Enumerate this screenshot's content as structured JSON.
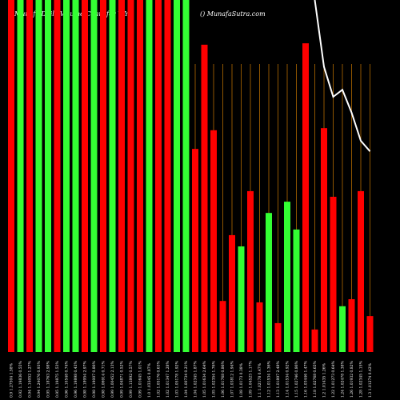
{
  "chart_data": {
    "type": "bar",
    "title": "Munafa Daily Volume Chart for WYO",
    "subtitle": "() MunafaSutra.com",
    "categories": [
      "0.9 1.27504 1.58%",
      "0.92 1.19836 0.55%",
      "0.94 1.14052 1.27%",
      "0.94 1.24076 0.93%",
      "0.95 1.18763 2.98%",
      "0.95 1.19875 1.53%",
      "0.96 1.10548 0.74%",
      "0.96 1.19898 0.43%",
      "0.98 1.18954 2.97%",
      "0.98 1.19007 0.86%",
      "0.98 1.06914 0.71%",
      "0.99 1.00452 2.13%",
      "0.99 1.04871 0.52%",
      "0.99 1.13892 0.57%",
      "0.99 1.01645 1.01%",
      "1.0 1.03345 0.87%",
      "1.02 1.05176 0.63%",
      "1.02 1.01347 1.28%",
      "1.03 1.05178 1.92%",
      "1.04 1.00734 0.21%",
      "1.04 1.02345 1.87%",
      "1.05 1.01634 2.64%",
      "1.05 1.02354 1.76%",
      "1.06 1.01768 0.86%",
      "1.07 1.03812 1.94%",
      "1.08 1.0173 0.38%",
      "1.09 1.04523 1.17%",
      "1.1 1.02178 0.47%",
      "1.12 1.01534 1.36%",
      "1.13 1.01897 2.48%",
      "1.14 1.01534 0.92%",
      "1.15 1.02746 0.86%",
      "1.16 1.03446 1.47%",
      "1.18 1.02768 0.65%",
      "1.2 1.01435 1.26%",
      "1.22 1.01273 0.64%",
      "1.24 1.02478 1.38%",
      "1.26 1.01932 0.82%",
      "1.28 1.02345 1.15%",
      "1.3 1.01274 0.42%"
    ],
    "values": [
      100,
      100,
      100,
      100,
      100,
      100,
      100,
      100,
      100,
      100,
      100,
      100,
      100,
      100,
      100,
      100,
      100,
      100,
      100,
      100,
      57.7,
      87.3,
      63,
      14.5,
      33.2,
      30,
      45.7,
      14.1,
      39.5,
      8.2,
      42.7,
      34.8,
      87.7,
      6.4,
      63.6,
      44.1,
      13,
      15,
      45.7,
      10.2
    ],
    "colors": [
      "#ff0000",
      "#33ff33",
      "#ff0000",
      "#33ff33",
      "#33ff33",
      "#ff0000",
      "#33ff33",
      "#33ff33",
      "#ff0000",
      "#33ff33",
      "#ff0000",
      "#33ff33",
      "#ff0000",
      "#ff0000",
      "#ff0000",
      "#33ff33",
      "#ff0000",
      "#ff0000",
      "#33ff33",
      "#33ff33",
      "#ff0000",
      "#ff0000",
      "#ff0000",
      "#ff0000",
      "#ff0000",
      "#33ff33",
      "#ff0000",
      "#ff0000",
      "#33ff33",
      "#ff0000",
      "#33ff33",
      "#33ff33",
      "#ff0000",
      "#ff0000",
      "#ff0000",
      "#ff0000",
      "#33ff33",
      "#ff0000",
      "#ff0000",
      "#ff0000"
    ],
    "line": {
      "color": "#ffffff",
      "values": [
        null,
        null,
        null,
        null,
        null,
        null,
        null,
        null,
        null,
        null,
        null,
        null,
        null,
        null,
        null,
        null,
        null,
        null,
        null,
        null,
        null,
        null,
        null,
        null,
        null,
        null,
        null,
        null,
        null,
        null,
        null,
        null,
        null,
        100,
        81,
        72.5,
        74.5,
        68,
        60,
        57
      ]
    },
    "ylim": [
      0,
      100
    ]
  }
}
